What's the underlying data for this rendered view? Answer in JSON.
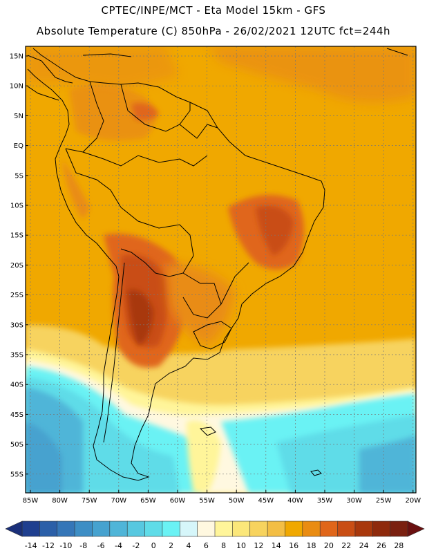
{
  "header": {
    "line1": "CPTEC/INPE/MCT -  Eta Model 15km - GFS",
    "line2": "Absolute Temperature (C) 850hPa - 26/02/2021 12UTC fct=244h"
  },
  "map": {
    "lat_labels": [
      "15N",
      "10N",
      "5N",
      "EQ",
      "5S",
      "10S",
      "15S",
      "20S",
      "25S",
      "30S",
      "35S",
      "40S",
      "45S",
      "50S",
      "55S"
    ],
    "lon_labels": [
      "85W",
      "80W",
      "75W",
      "70W",
      "65W",
      "60W",
      "55W",
      "50W",
      "45W",
      "40W",
      "35W",
      "30W",
      "25W",
      "20W"
    ],
    "colors": {
      "ocean_warm": "#F0A800",
      "land_hot": "#D65A10",
      "land_very_hot": "#B8400A",
      "cool": "#F8E070",
      "cold": "#5DE0EC",
      "very_cold": "#2E8FB8"
    }
  },
  "colorbar": {
    "labels": [
      "-14",
      "-12",
      "-10",
      "-8",
      "-6",
      "-4",
      "-2",
      "0",
      "2",
      "4",
      "6",
      "8",
      "10",
      "12",
      "14",
      "16",
      "18",
      "20",
      "22",
      "24",
      "26",
      "28"
    ],
    "colors": [
      "#1F3F8F",
      "#2B5FA8",
      "#3576B8",
      "#3D8EC5",
      "#46A2CF",
      "#4FB5D8",
      "#57C8E0",
      "#5FDCE8",
      "#6AF2F4",
      "#D6F6FA",
      "#FFF8E0",
      "#FFF59A",
      "#FBE77A",
      "#F7D35E",
      "#F3BE44",
      "#F0A800",
      "#E98C12",
      "#E0661A",
      "#C94E14",
      "#A8380C",
      "#8E2A0C",
      "#7A2010"
    ],
    "left_arrow_color": "#1A2F7A",
    "right_arrow_color": "#6A1010"
  }
}
